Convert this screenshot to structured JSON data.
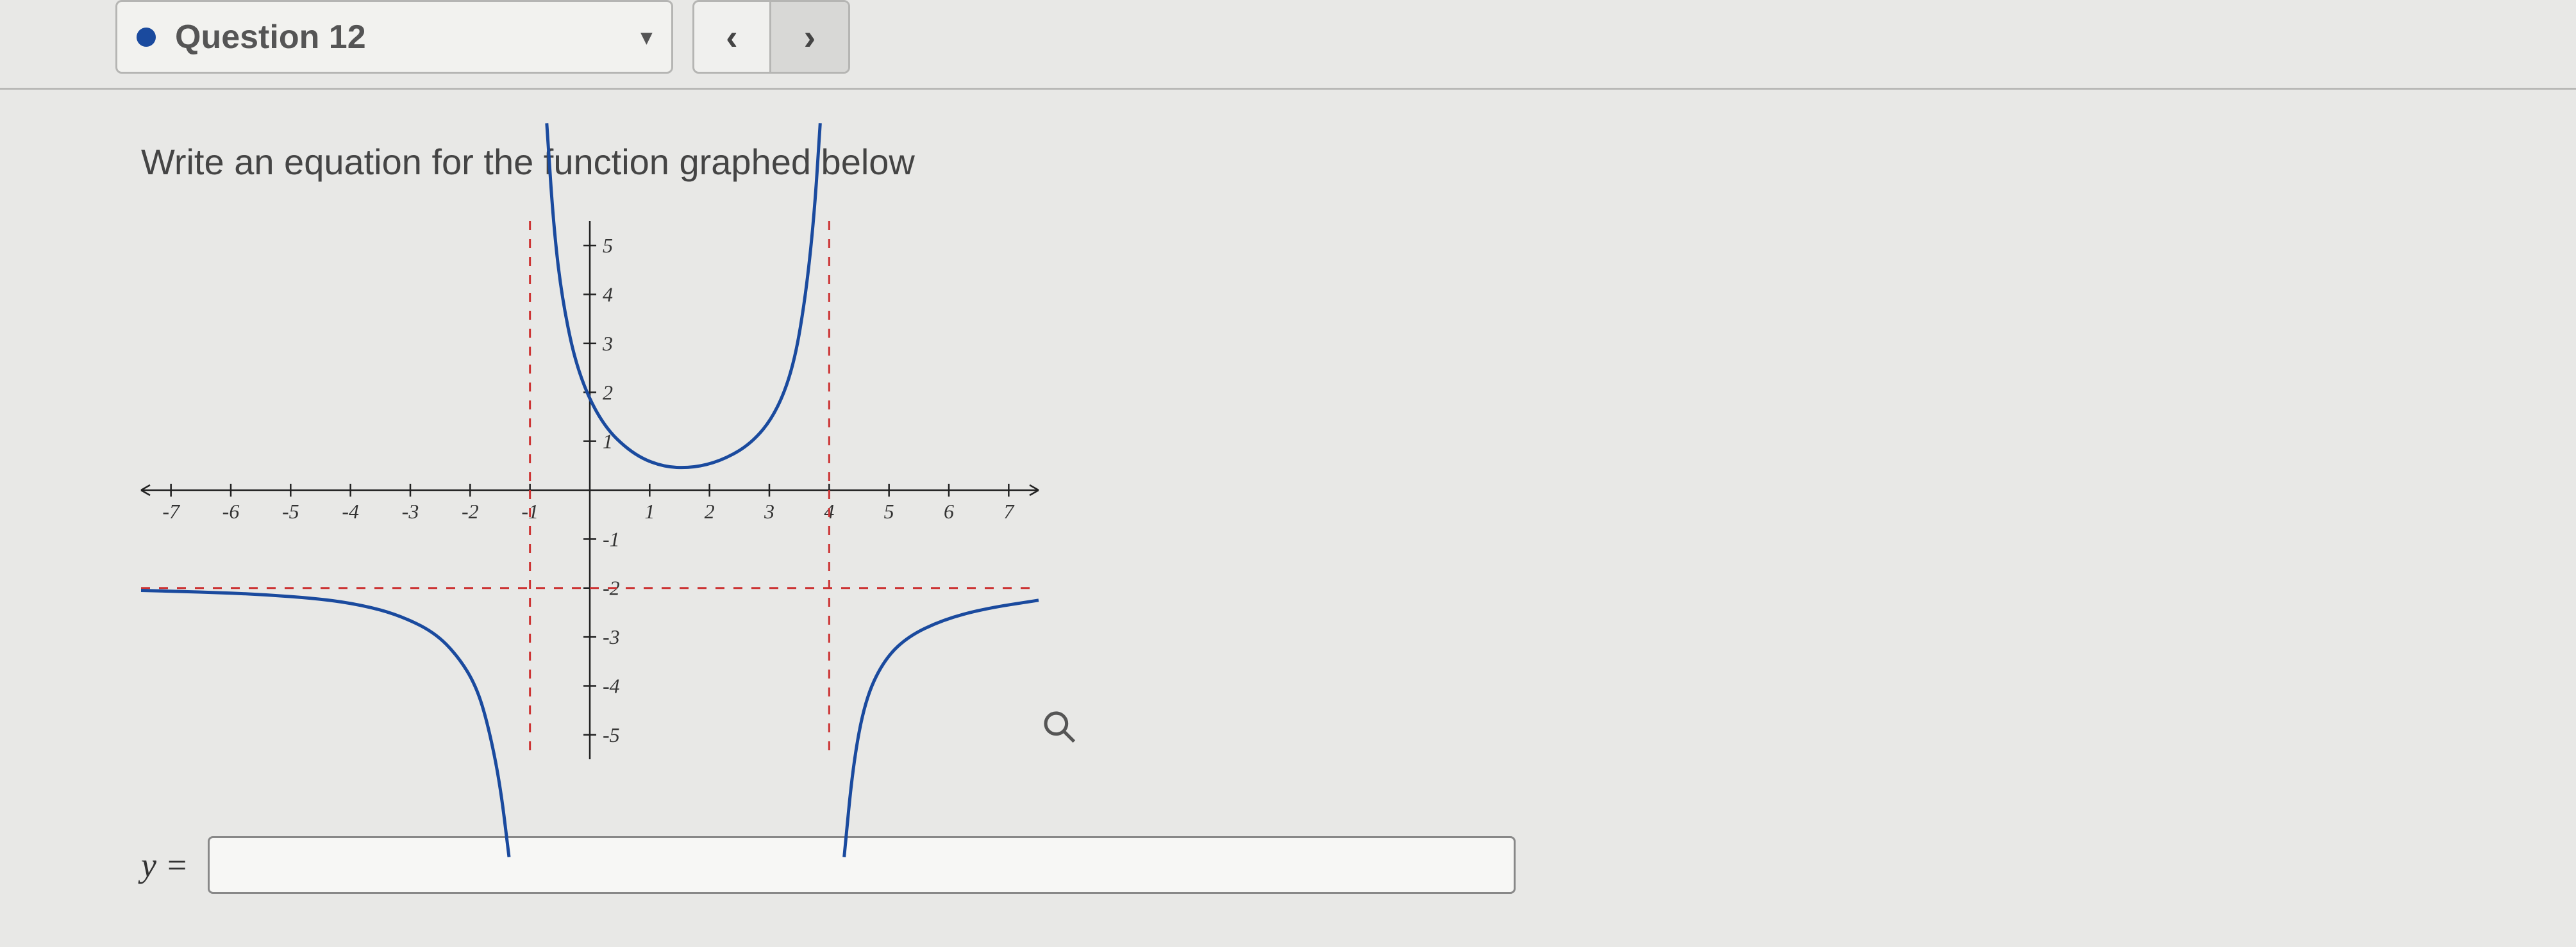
{
  "nav": {
    "question_label": "Question 12",
    "dropdown_indicator": "▾",
    "prev_label": "‹",
    "next_label": "›",
    "dot_color": "#1a4a9e"
  },
  "prompt": "Write an equation for the function graphed below",
  "chart": {
    "type": "rational-function-plot",
    "background_color": "#e8e8e6",
    "axis_color": "#222222",
    "curve_color": "#1a4a9e",
    "asymptote_color": "#cc3333",
    "asymptote_dash": "14 14",
    "xlim": [
      -7.5,
      7.5
    ],
    "ylim": [
      -5.5,
      5.5
    ],
    "xticks": [
      -7,
      -6,
      -5,
      -4,
      -3,
      -2,
      -1,
      1,
      2,
      3,
      4,
      5,
      6,
      7
    ],
    "yticks": [
      -5,
      -4,
      -3,
      -2,
      -1,
      1,
      2,
      3,
      4,
      5
    ],
    "vertical_asymptotes": [
      -1,
      4
    ],
    "horizontal_asymptote": -2,
    "tick_fontsize": 32,
    "curve_pieces": [
      {
        "comment": "left branch, x < -1, approaches y=-2 from below at -inf, dives to -inf approaching x=-1-",
        "points": [
          [
            -7.5,
            -2.05
          ],
          [
            -6.5,
            -2.08
          ],
          [
            -5.5,
            -2.13
          ],
          [
            -4.5,
            -2.22
          ],
          [
            -3.8,
            -2.35
          ],
          [
            -3.2,
            -2.55
          ],
          [
            -2.6,
            -2.9
          ],
          [
            -2.2,
            -3.4
          ],
          [
            -1.9,
            -4.0
          ],
          [
            -1.7,
            -4.8
          ],
          [
            -1.5,
            -6.0
          ],
          [
            -1.35,
            -7.5
          ]
        ]
      },
      {
        "comment": "middle branch, -1 < x < 4, comes from +inf, dips to min ~y≈0.5 near x≈1.5, back to +inf",
        "points": [
          [
            -0.72,
            7.5
          ],
          [
            -0.6,
            5.3
          ],
          [
            -0.45,
            3.8
          ],
          [
            -0.2,
            2.4
          ],
          [
            0.2,
            1.35
          ],
          [
            0.7,
            0.75
          ],
          [
            1.2,
            0.48
          ],
          [
            1.7,
            0.45
          ],
          [
            2.2,
            0.6
          ],
          [
            2.7,
            0.95
          ],
          [
            3.1,
            1.55
          ],
          [
            3.4,
            2.5
          ],
          [
            3.6,
            3.9
          ],
          [
            3.75,
            5.6
          ],
          [
            3.85,
            7.5
          ]
        ]
      },
      {
        "comment": "right branch, x > 4, from -inf up toward y=-2 from below",
        "points": [
          [
            4.25,
            -7.5
          ],
          [
            4.4,
            -5.6
          ],
          [
            4.6,
            -4.3
          ],
          [
            4.9,
            -3.5
          ],
          [
            5.3,
            -3.0
          ],
          [
            5.9,
            -2.65
          ],
          [
            6.6,
            -2.42
          ],
          [
            7.5,
            -2.25
          ]
        ]
      }
    ]
  },
  "answer": {
    "prefix_label": "y =",
    "value": "",
    "placeholder": ""
  },
  "icons": {
    "magnify": "search"
  }
}
